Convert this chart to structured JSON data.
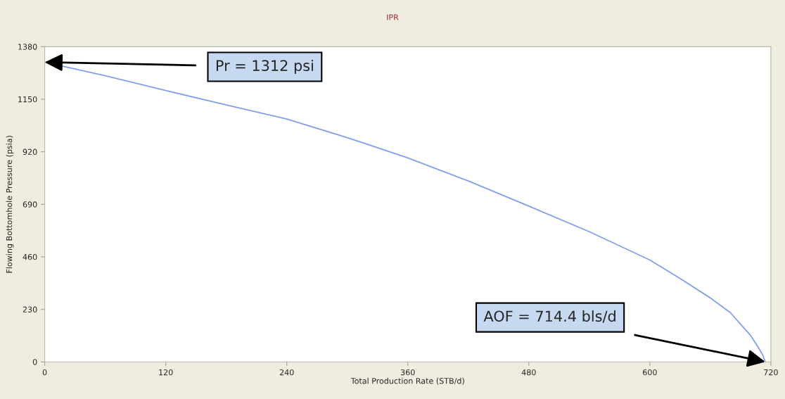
{
  "chart_data": {
    "type": "line",
    "title": "IPR",
    "xlabel": "Total Production Rate (STB/d)",
    "ylabel": "Flowing Bottomhole Pressure (psia)",
    "x": [
      0,
      60,
      120,
      180,
      240,
      300,
      360,
      420,
      480,
      540,
      600,
      630,
      660,
      680,
      693,
      700,
      708,
      712,
      714.4
    ],
    "series": [
      {
        "color": "#7f9fef",
        "values": [
          1312,
          1253,
          1188,
          1125,
          1063,
          982,
          893,
          792,
          682,
          570,
          446,
          365,
          280,
          215,
          150,
          115,
          60,
          30,
          0
        ]
      }
    ],
    "xlim": [
      0,
      720
    ],
    "xticks": [
      0,
      120,
      240,
      360,
      480,
      600,
      720
    ],
    "ylim": [
      0,
      1380
    ],
    "yticks": [
      0,
      230,
      460,
      690,
      920,
      1150,
      1380
    ],
    "grid": false,
    "legend": false,
    "marker": "none",
    "line_style": "solid",
    "annotations": [
      "Pr = 1312 psi",
      "AOF = 714.4 bls/d"
    ]
  }
}
